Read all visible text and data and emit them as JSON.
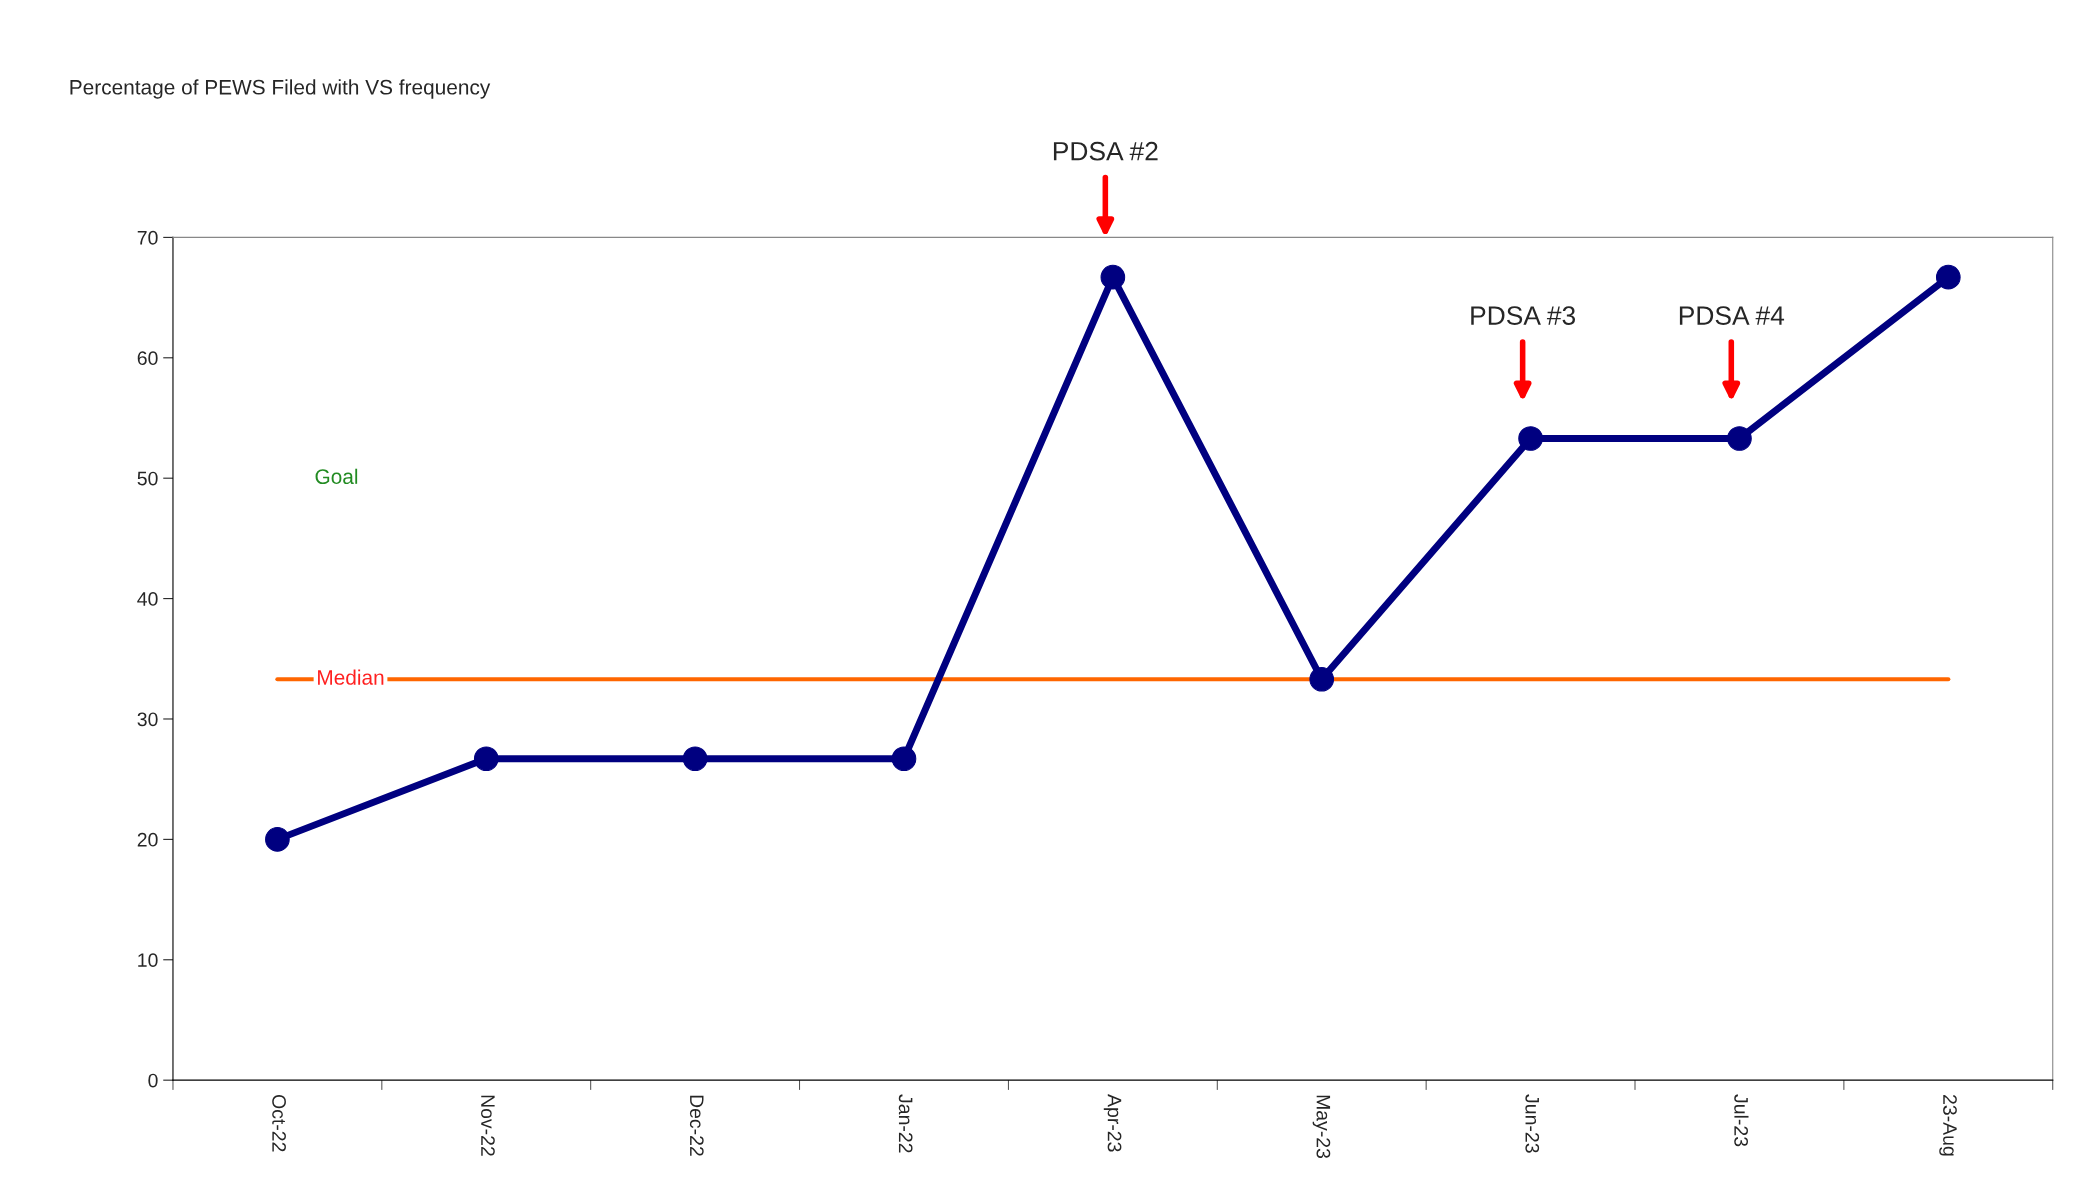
{
  "chart_data": {
    "type": "line",
    "title": "Percentage of PEWS Filed with VS frequency",
    "categories": [
      "Oct-22",
      "Nov-22",
      "Dec-22",
      "Jan-22",
      "Apr-23",
      "May-23",
      "Jun-23",
      "Jul-23",
      "23-Aug"
    ],
    "series": [
      {
        "color": "#000080",
        "values": [
          20,
          26.7,
          26.7,
          26.7,
          66.7,
          33.3,
          53.3,
          53.3,
          66.7
        ]
      }
    ],
    "ylim": [
      0,
      70
    ],
    "yticks": [
      0,
      10,
      20,
      30,
      40,
      50,
      60,
      70
    ],
    "ref_lines": [
      {
        "axis": "y",
        "value": 33.3,
        "label": "Median",
        "color": "#ff6600"
      }
    ],
    "annotations": [
      "Goal",
      "PDSA #2",
      "PDSA #3",
      "PDSA #4"
    ],
    "grid": false,
    "legend": false,
    "marker": "circle",
    "line_style": "solid"
  }
}
